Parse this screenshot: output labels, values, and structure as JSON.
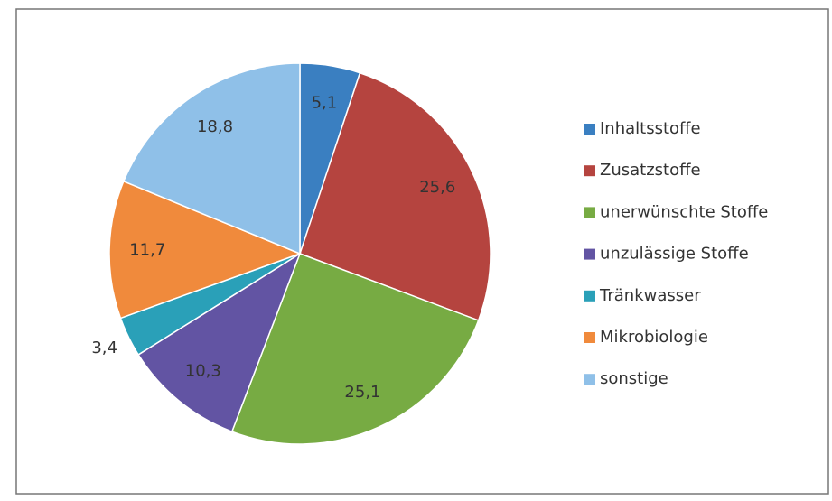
{
  "chart_data": {
    "type": "pie",
    "categories": [
      "Inhaltsstoffe",
      "Zusatzstoffe",
      "unerwünschte Stoffe",
      "unzulässige Stoffe",
      "Tränkwasser",
      "Mikrobiologie",
      "sonstige"
    ],
    "values": [
      5.1,
      25.6,
      25.1,
      10.3,
      3.4,
      11.7,
      18.8
    ],
    "value_labels": [
      "5,1",
      "25,6",
      "25,1",
      "10,3",
      "3,4",
      "11,7",
      "18,8"
    ],
    "colors": [
      "#3a7fc1",
      "#b5443f",
      "#77ab43",
      "#6254a3",
      "#2aa0b8",
      "#f08a3c",
      "#8fc0e8"
    ],
    "legend": "right"
  }
}
